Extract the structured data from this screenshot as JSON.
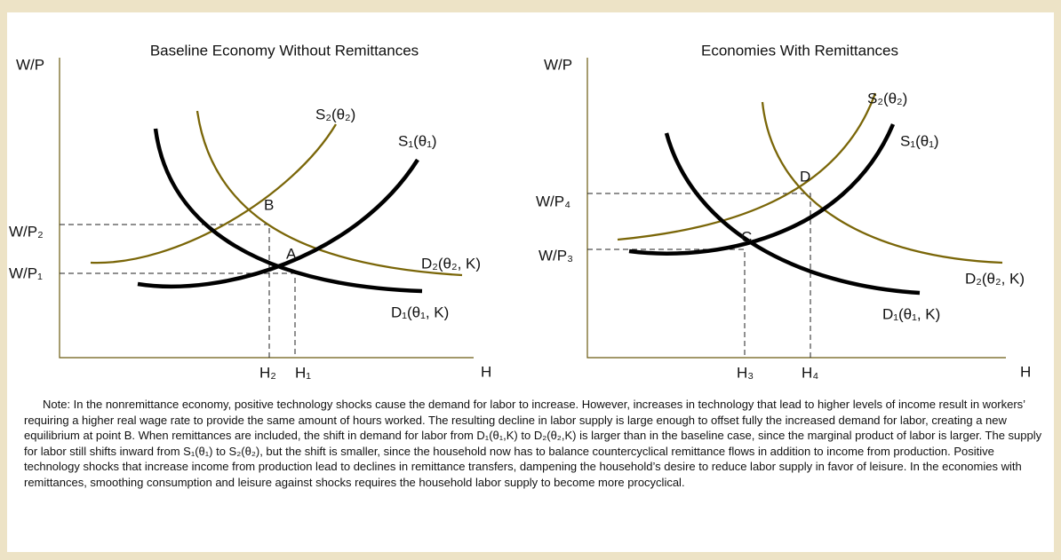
{
  "panels": [
    {
      "title": "Baseline Economy Without Remittances",
      "y_axis_label": "W/P",
      "x_axis_label": "H",
      "curves": [
        "S₂(θ₂)",
        "S₁(θ₁)",
        "D₂(θ₂, K)",
        "D₁(θ₁, K)"
      ],
      "points": [
        "B",
        "A"
      ],
      "y_ticks": [
        "W/P₂",
        "W/P₁"
      ],
      "x_ticks": [
        "H₂",
        "H₁"
      ]
    },
    {
      "title": "Economies With Remittances",
      "y_axis_label": "W/P",
      "x_axis_label": "H",
      "curves": [
        "S₂(θ₂)",
        "S₁(θ₁)",
        "D₂(θ₂, K)",
        "D₁(θ₁, K)"
      ],
      "points": [
        "D",
        "C"
      ],
      "y_ticks": [
        "W/P₄",
        "W/P₃"
      ],
      "x_ticks": [
        "H₃",
        "H₄"
      ]
    }
  ],
  "note": "Note: In the nonremittance economy, positive technology shocks cause the demand for labor to increase. However, increases in technology that lead to higher levels of income result in workers’ requiring a higher real wage rate to provide the same amount of hours worked. The resulting decline in labor supply is large enough to offset fully the increased demand for labor, creating a new equilibrium at point B. When remittances are included, the shift in demand for labor from D₁(θ₁,K) to D₂(θ₂,K) is larger than in the baseline case, since the marginal product of labor is larger. The supply for labor still shifts inward from S₁(θ₁) to S₂(θ₂), but the shift is smaller, since the household now has to balance countercyclical remittance flows in addition to income from production. Positive technology shocks that increase income from production lead to declines in remittance transfers, dampening the household’s desire to reduce labor supply in favor of leisure. In the economies with remittances, smoothing consumption and leisure against shocks requires the household labor supply to become more procyclical."
}
